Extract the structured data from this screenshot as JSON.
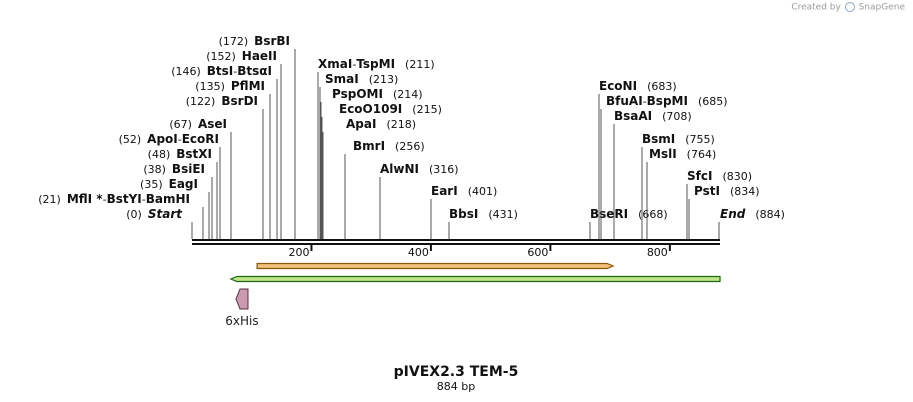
{
  "credit": {
    "created_by": "Created by",
    "app": "SnapGene",
    "logo_color": "#8aa6c8"
  },
  "map": {
    "title": "pIVEX2.3 TEM-5",
    "length_label": "884 bp",
    "length_bp": 884,
    "ticks": [
      {
        "value": 200,
        "label": "200"
      },
      {
        "value": 400,
        "label": "400"
      },
      {
        "value": 600,
        "label": "600"
      },
      {
        "value": 800,
        "label": "800"
      }
    ]
  },
  "sites": [
    {
      "names": [
        "Start"
      ],
      "pos_label": "(0)",
      "pos": 0,
      "style": "italic",
      "stem_x": 192
    },
    {
      "names": [
        "MflI *",
        "BstYI",
        "BamHI"
      ],
      "pos_label": "(21)",
      "pos": 21,
      "stem_x": 203
    },
    {
      "names": [
        "EagI"
      ],
      "pos_label": "(35)",
      "pos": 35,
      "stem_x": 209
    },
    {
      "names": [
        "BsiEI"
      ],
      "pos_label": "(38)",
      "pos": 38,
      "stem_x": 212
    },
    {
      "names": [
        "BstXI"
      ],
      "pos_label": "(48)",
      "pos": 48,
      "stem_x": 217
    },
    {
      "names": [
        "ApoI",
        "EcoRI"
      ],
      "pos_label": "(52)",
      "pos": 52,
      "stem_x": 220
    },
    {
      "names": [
        "AseI"
      ],
      "pos_label": "(67)",
      "pos": 67,
      "stem_x": 231
    },
    {
      "names": [
        "BsrDI"
      ],
      "pos_label": "(122)",
      "pos": 122,
      "stem_x": 263
    },
    {
      "names": [
        "PflMI"
      ],
      "pos_label": "(135)",
      "pos": 135,
      "stem_x": 270
    },
    {
      "names": [
        "BtsI",
        "BtsαI"
      ],
      "pos_label": "(146)",
      "pos": 146,
      "stem_x": 277
    },
    {
      "names": [
        "HaeII"
      ],
      "pos_label": "(152)",
      "pos": 152,
      "stem_x": 281
    },
    {
      "names": [
        "BsrBI"
      ],
      "pos_label": "(172)",
      "pos": 172,
      "stem_x": 295
    },
    {
      "names": [
        "XmaI",
        "TspMI"
      ],
      "pos_label": "(211)",
      "pos": 211,
      "stem_x": 318
    },
    {
      "names": [
        "SmaI"
      ],
      "pos_label": "(213)",
      "pos": 213,
      "stem_x": 320
    },
    {
      "names": [
        "PspOMI"
      ],
      "pos_label": "(214)",
      "pos": 214,
      "stem_x": 321
    },
    {
      "names": [
        "EcoO109I"
      ],
      "pos_label": "(215)",
      "pos": 215,
      "stem_x": 322
    },
    {
      "names": [
        "ApaI"
      ],
      "pos_label": "(218)",
      "pos": 218,
      "stem_x": 323
    },
    {
      "names": [
        "BmrI"
      ],
      "pos_label": "(256)",
      "pos": 256,
      "stem_x": 345
    },
    {
      "names": [
        "AlwNI"
      ],
      "pos_label": "(316)",
      "pos": 316,
      "stem_x": 380
    },
    {
      "names": [
        "EarI"
      ],
      "pos_label": "(401)",
      "pos": 401,
      "stem_x": 431
    },
    {
      "names": [
        "BbsI"
      ],
      "pos_label": "(431)",
      "pos": 431,
      "stem_x": 449
    },
    {
      "names": [
        "BseRI"
      ],
      "pos_label": "(668)",
      "pos": 668,
      "stem_x": 590
    },
    {
      "names": [
        "EcoNI"
      ],
      "pos_label": "(683)",
      "pos": 683,
      "stem_x": 599
    },
    {
      "names": [
        "BfuAI",
        "BspMI"
      ],
      "pos_label": "(685)",
      "pos": 685,
      "stem_x": 601
    },
    {
      "names": [
        "BsaAI"
      ],
      "pos_label": "(708)",
      "pos": 708,
      "stem_x": 614
    },
    {
      "names": [
        "BsmI"
      ],
      "pos_label": "(755)",
      "pos": 755,
      "stem_x": 642
    },
    {
      "names": [
        "MslI"
      ],
      "pos_label": "(764)",
      "pos": 764,
      "stem_x": 647
    },
    {
      "names": [
        "SfcI"
      ],
      "pos_label": "(830)",
      "pos": 830,
      "stem_x": 687
    },
    {
      "names": [
        "PstI"
      ],
      "pos_label": "(834)",
      "pos": 834,
      "stem_x": 689
    },
    {
      "names": [
        "End"
      ],
      "pos_label": "(884)",
      "pos": 884,
      "style": "italic",
      "stem_x": 719
    }
  ],
  "features": [
    {
      "name": "orange-orf",
      "start": 109,
      "end": 705,
      "strand": "forward",
      "fill": "#f2c27a",
      "stroke": "#8a5a10"
    },
    {
      "name": "green-orf",
      "start": 65,
      "end": 884,
      "strand": "reverse",
      "fill": "#bfe48a",
      "stroke": "#1f6a0f"
    },
    {
      "name": "6xHis",
      "label": "6xHis",
      "pos": 77,
      "fill": "#c99ab0",
      "stroke": "#5a2f45"
    }
  ]
}
